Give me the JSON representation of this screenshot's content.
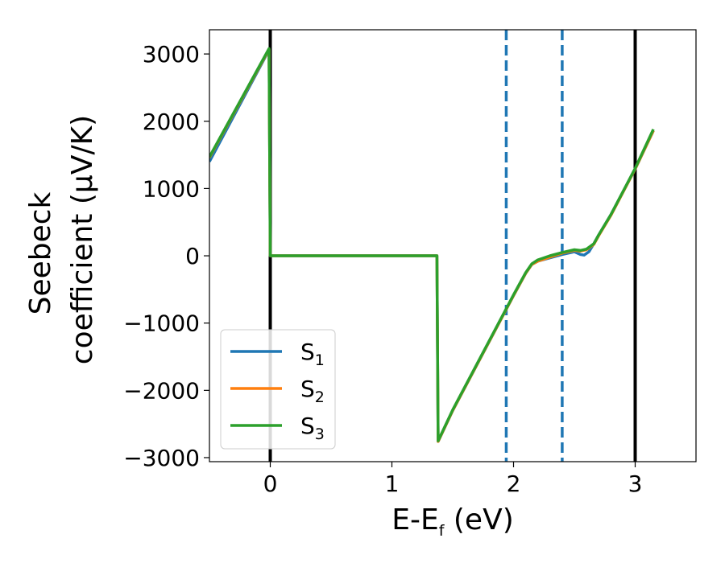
{
  "chart_data": {
    "type": "line",
    "title": "",
    "xlabel_parts": {
      "main": "E-E",
      "sub": "f",
      "tail": " (eV)"
    },
    "ylabel_lines": [
      "Seebeck",
      "coefficient  (μV/K)"
    ],
    "xlim": [
      -0.5,
      3.5
    ],
    "ylim": [
      -3060,
      3360
    ],
    "xticks": [
      0,
      1,
      2,
      3
    ],
    "xtick_labels": [
      "0",
      "1",
      "2",
      "3"
    ],
    "yticks": [
      -3000,
      -2000,
      -1000,
      0,
      1000,
      2000,
      3000
    ],
    "ytick_labels": [
      "−3000",
      "−2000",
      "−1000",
      "0",
      "1000",
      "2000",
      "3000"
    ],
    "grid": false,
    "legend_position": "lower-left",
    "vlines": [
      {
        "x": 0,
        "style": "solid",
        "color": "#000000"
      },
      {
        "x": 3,
        "style": "solid",
        "color": "#000000"
      },
      {
        "x": 1.94,
        "style": "dashed",
        "color": "#1f77b4"
      },
      {
        "x": 2.4,
        "style": "dashed",
        "color": "#1f77b4"
      }
    ],
    "series": [
      {
        "name": "S1",
        "label_main": "S",
        "label_sub": "1",
        "color": "#1f77b4",
        "x": [
          -0.5,
          -0.01,
          0,
          0.01,
          1.37,
          1.38,
          1.5,
          2.0,
          2.1,
          2.15,
          2.2,
          2.3,
          2.4,
          2.5,
          2.55,
          2.58,
          2.62,
          2.66,
          2.7,
          2.8,
          3.0,
          3.15
        ],
        "y": [
          1400,
          3060,
          0,
          0,
          0,
          -2760,
          -2300,
          -590,
          -260,
          -130,
          -80,
          -30,
          20,
          60,
          20,
          10,
          60,
          180,
          310,
          610,
          1290,
          1860
        ]
      },
      {
        "name": "S2",
        "label_main": "S",
        "label_sub": "2",
        "color": "#ff7f0e",
        "x": [
          -0.5,
          -0.01,
          0,
          0.01,
          1.37,
          1.38,
          1.5,
          2.0,
          2.1,
          2.15,
          2.2,
          2.3,
          2.4,
          2.5,
          2.55,
          2.6,
          2.66,
          2.7,
          2.8,
          3.0,
          3.15
        ],
        "y": [
          1460,
          3070,
          0,
          0,
          0,
          -2760,
          -2300,
          -590,
          -260,
          -130,
          -80,
          -20,
          40,
          80,
          70,
          90,
          170,
          300,
          600,
          1290,
          1860
        ]
      },
      {
        "name": "S3",
        "label_main": "S",
        "label_sub": "3",
        "color": "#2ca02c",
        "x": [
          -0.5,
          -0.01,
          0,
          0.01,
          1.37,
          1.38,
          1.5,
          2.0,
          2.1,
          2.15,
          2.2,
          2.3,
          2.4,
          2.5,
          2.55,
          2.6,
          2.66,
          2.7,
          2.8,
          3.0,
          3.15
        ],
        "y": [
          1470,
          3080,
          0,
          0,
          0,
          -2750,
          -2290,
          -580,
          -250,
          -120,
          -60,
          0,
          50,
          90,
          80,
          100,
          180,
          310,
          610,
          1300,
          1880
        ]
      }
    ]
  }
}
